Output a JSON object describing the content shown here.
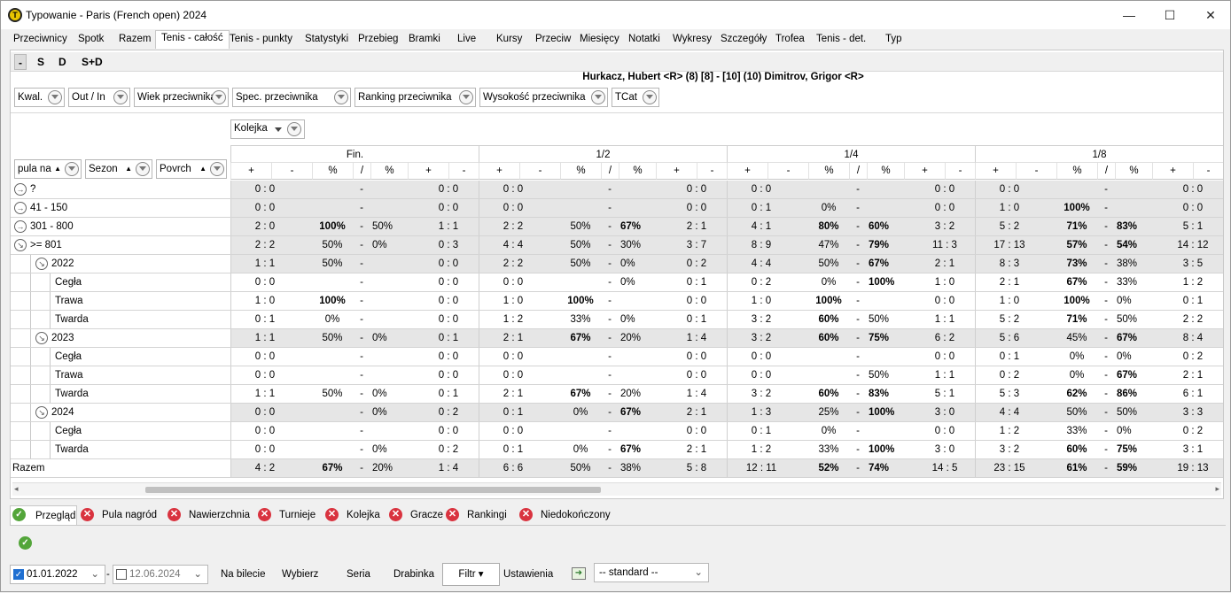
{
  "window": {
    "title": "Typowanie - Paris (French open) 2024",
    "min_icon": "minimize-icon",
    "max_icon": "maximize-icon",
    "close_icon": "close-icon"
  },
  "menu_tabs": [
    "Przeciwnicy",
    "Spotk",
    "Razem",
    "Tenis - całość",
    "Tenis - punkty",
    "Statystyki",
    "Przebieg",
    "Bramki",
    "Live",
    "Kursy",
    "Przeciw",
    "Miesięcy",
    "Notatki",
    "Wykresy",
    "Szczegóły",
    "Trofea",
    "Tenis - det.",
    "Typ"
  ],
  "active_tab": "Tenis - całość",
  "sub_tabs": [
    "-",
    "S",
    "D",
    "S+D"
  ],
  "match_title": "Hurkacz, Hubert <R> (8) [8] - [10] (10) Dimitrov, Grigor <R>",
  "filters": [
    "Kwal.",
    "Out / In",
    "Wiek przeciwnika",
    "Spec. przeciwnika",
    "Ranking przeciwnika",
    "Wysokość przeciwnika",
    "TCat"
  ],
  "kolejka": "Kolejka",
  "left_headers": {
    "pula": "pula na",
    "sezon": "Sezon",
    "povrch": "Povrch"
  },
  "groups": [
    "Fin.",
    "1/2",
    "1/4",
    "1/8"
  ],
  "subcols": [
    "+",
    "-",
    "%",
    "/",
    "%",
    "+",
    "-"
  ],
  "rows": [
    {
      "label": "?",
      "level": 0,
      "exp": "right",
      "gray": true,
      "g": [
        [
          "0 : 0",
          "",
          "-",
          "",
          "0 : 0"
        ],
        [
          "0 : 0",
          "",
          "-",
          "",
          "0 : 0"
        ],
        [
          "0 : 0",
          "",
          "-",
          "",
          "0 : 0"
        ],
        [
          "0 : 0",
          "",
          "-",
          "",
          "0 : 0"
        ]
      ]
    },
    {
      "label": "41 - 150",
      "level": 0,
      "exp": "right",
      "gray": true,
      "g": [
        [
          "0 : 0",
          "",
          "-",
          "",
          "0 : 0"
        ],
        [
          "0 : 0",
          "",
          "-",
          "",
          "0 : 0"
        ],
        [
          "0 : 1",
          "0%",
          "-",
          "",
          "0 : 0"
        ],
        [
          "1 : 0",
          "*100%",
          "-",
          "",
          "0 : 0"
        ]
      ]
    },
    {
      "label": "301 - 800",
      "level": 0,
      "exp": "right",
      "gray": true,
      "g": [
        [
          "2 : 0",
          "*100%",
          "-",
          "50%",
          "1 : 1"
        ],
        [
          "2 : 2",
          "50%",
          "-",
          "*67%",
          "2 : 1"
        ],
        [
          "4 : 1",
          "*80%",
          "-",
          "*60%",
          "3 : 2"
        ],
        [
          "5 : 2",
          "*71%",
          "-",
          "*83%",
          "5 : 1"
        ]
      ]
    },
    {
      "label": ">= 801",
      "level": 0,
      "exp": "down",
      "gray": true,
      "g": [
        [
          "2 : 2",
          "50%",
          "-",
          "0%",
          "0 : 3"
        ],
        [
          "4 : 4",
          "50%",
          "-",
          "30%",
          "3 : 7"
        ],
        [
          "8 : 9",
          "47%",
          "-",
          "*79%",
          "11 : 3"
        ],
        [
          "17 : 13",
          "*57%",
          "-",
          "*54%",
          "14 : 12"
        ]
      ]
    },
    {
      "label": "2022",
      "level": 1,
      "exp": "down",
      "gray": true,
      "g": [
        [
          "1 : 1",
          "50%",
          "-",
          "",
          "0 : 0"
        ],
        [
          "2 : 2",
          "50%",
          "-",
          "0%",
          "0 : 2"
        ],
        [
          "4 : 4",
          "50%",
          "-",
          "*67%",
          "2 : 1"
        ],
        [
          "8 : 3",
          "*73%",
          "-",
          "38%",
          "3 : 5"
        ]
      ]
    },
    {
      "label": "Cegła",
      "level": 2,
      "gray": false,
      "g": [
        [
          "0 : 0",
          "",
          "-",
          "",
          "0 : 0"
        ],
        [
          "0 : 0",
          "",
          "-",
          "0%",
          "0 : 1"
        ],
        [
          "0 : 2",
          "0%",
          "-",
          "*100%",
          "1 : 0"
        ],
        [
          "2 : 1",
          "*67%",
          "-",
          "33%",
          "1 : 2"
        ]
      ]
    },
    {
      "label": "Trawa",
      "level": 2,
      "gray": false,
      "g": [
        [
          "1 : 0",
          "*100%",
          "-",
          "",
          "0 : 0"
        ],
        [
          "1 : 0",
          "*100%",
          "-",
          "",
          "0 : 0"
        ],
        [
          "1 : 0",
          "*100%",
          "-",
          "",
          "0 : 0"
        ],
        [
          "1 : 0",
          "*100%",
          "-",
          "0%",
          "0 : 1"
        ]
      ]
    },
    {
      "label": "Twarda",
      "level": 2,
      "gray": false,
      "g": [
        [
          "0 : 1",
          "0%",
          "-",
          "",
          "0 : 0"
        ],
        [
          "1 : 2",
          "33%",
          "-",
          "0%",
          "0 : 1"
        ],
        [
          "3 : 2",
          "*60%",
          "-",
          "50%",
          "1 : 1"
        ],
        [
          "5 : 2",
          "*71%",
          "-",
          "50%",
          "2 : 2"
        ]
      ]
    },
    {
      "label": "2023",
      "level": 1,
      "exp": "down",
      "gray": true,
      "g": [
        [
          "1 : 1",
          "50%",
          "-",
          "0%",
          "0 : 1"
        ],
        [
          "2 : 1",
          "*67%",
          "-",
          "20%",
          "1 : 4"
        ],
        [
          "3 : 2",
          "*60%",
          "-",
          "*75%",
          "6 : 2"
        ],
        [
          "5 : 6",
          "45%",
          "-",
          "*67%",
          "8 : 4"
        ]
      ]
    },
    {
      "label": "Cegła",
      "level": 2,
      "gray": false,
      "g": [
        [
          "0 : 0",
          "",
          "-",
          "",
          "0 : 0"
        ],
        [
          "0 : 0",
          "",
          "-",
          "",
          "0 : 0"
        ],
        [
          "0 : 0",
          "",
          "-",
          "",
          "0 : 0"
        ],
        [
          "0 : 1",
          "0%",
          "-",
          "0%",
          "0 : 2"
        ]
      ]
    },
    {
      "label": "Trawa",
      "level": 2,
      "gray": false,
      "g": [
        [
          "0 : 0",
          "",
          "-",
          "",
          "0 : 0"
        ],
        [
          "0 : 0",
          "",
          "-",
          "",
          "0 : 0"
        ],
        [
          "0 : 0",
          "",
          "-",
          "50%",
          "1 : 1"
        ],
        [
          "0 : 2",
          "0%",
          "-",
          "*67%",
          "2 : 1"
        ]
      ]
    },
    {
      "label": "Twarda",
      "level": 2,
      "gray": false,
      "g": [
        [
          "1 : 1",
          "50%",
          "-",
          "0%",
          "0 : 1"
        ],
        [
          "2 : 1",
          "*67%",
          "-",
          "20%",
          "1 : 4"
        ],
        [
          "3 : 2",
          "*60%",
          "-",
          "*83%",
          "5 : 1"
        ],
        [
          "5 : 3",
          "*62%",
          "-",
          "*86%",
          "6 : 1"
        ]
      ]
    },
    {
      "label": "2024",
      "level": 1,
      "exp": "down",
      "gray": true,
      "g": [
        [
          "0 : 0",
          "",
          "-",
          "0%",
          "0 : 2"
        ],
        [
          "0 : 1",
          "0%",
          "-",
          "*67%",
          "2 : 1"
        ],
        [
          "1 : 3",
          "25%",
          "-",
          "*100%",
          "3 : 0"
        ],
        [
          "4 : 4",
          "50%",
          "-",
          "50%",
          "3 : 3"
        ]
      ]
    },
    {
      "label": "Cegła",
      "level": 2,
      "gray": false,
      "g": [
        [
          "0 : 0",
          "",
          "-",
          "",
          "0 : 0"
        ],
        [
          "0 : 0",
          "",
          "-",
          "",
          "0 : 0"
        ],
        [
          "0 : 1",
          "0%",
          "-",
          "",
          "0 : 0"
        ],
        [
          "1 : 2",
          "33%",
          "-",
          "0%",
          "0 : 2"
        ]
      ]
    },
    {
      "label": "Twarda",
      "level": 2,
      "gray": false,
      "g": [
        [
          "0 : 0",
          "",
          "-",
          "0%",
          "0 : 2"
        ],
        [
          "0 : 1",
          "0%",
          "-",
          "*67%",
          "2 : 1"
        ],
        [
          "1 : 2",
          "33%",
          "-",
          "*100%",
          "3 : 0"
        ],
        [
          "3 : 2",
          "*60%",
          "-",
          "*75%",
          "3 : 1"
        ]
      ]
    },
    {
      "label": "Razem",
      "level": -1,
      "gray": true,
      "g": [
        [
          "4 : 2",
          "*67%",
          "-",
          "20%",
          "1 : 4"
        ],
        [
          "6 : 6",
          "50%",
          "-",
          "38%",
          "5 : 8"
        ],
        [
          "12 : 11",
          "*52%",
          "-",
          "*74%",
          "14 : 5"
        ],
        [
          "23 : 15",
          "*61%",
          "-",
          "*59%",
          "19 : 13"
        ]
      ]
    }
  ],
  "bottom_tabs": [
    "Przegląd",
    "Pula nagród",
    "Nawierzchnia",
    "Turnieje",
    "Kolejka",
    "Gracze",
    "Rankingi",
    "Niedokończony"
  ],
  "toolbar": {
    "date_from": "01.01.2022",
    "date_to": "12.06.2024",
    "sep": "-",
    "na_bilecie": "Na bilecie",
    "wybierz": "Wybierz",
    "seria": "Seria",
    "drabinka": "Drabinka",
    "filtr": "Filtr",
    "ustawienia": "Ustawienia",
    "preset": "-- standard --"
  }
}
